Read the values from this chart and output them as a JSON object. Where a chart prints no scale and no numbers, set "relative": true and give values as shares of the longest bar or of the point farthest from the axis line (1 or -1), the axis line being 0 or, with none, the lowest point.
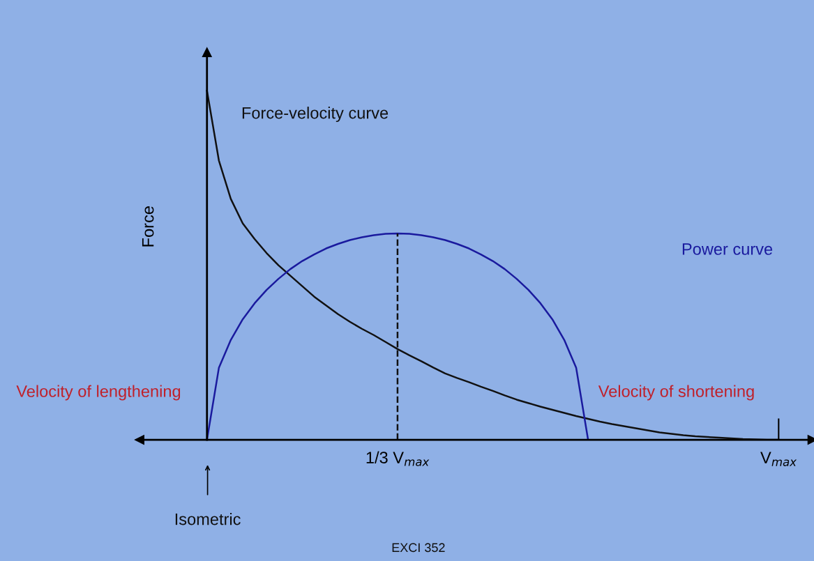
{
  "chart_data": {
    "type": "line",
    "relative": true,
    "ylabel": "Force",
    "categories": [
      null,
      null,
      null,
      null,
      null,
      null,
      null,
      null,
      null,
      null,
      null,
      null,
      null,
      null,
      null,
      null,
      "1/3 V$_{max}$",
      null,
      null,
      null,
      null,
      null,
      null,
      null,
      null,
      null,
      null,
      null,
      null,
      null,
      null,
      null,
      null,
      null,
      null,
      null,
      null,
      null,
      null,
      null,
      null,
      null,
      null,
      null,
      null,
      null,
      null,
      null,
      "V$_{max}$"
    ],
    "series": [
      {
        "name": "Force-velocity curve",
        "color": "#111111",
        "values": [
          1.0,
          0.8,
          0.69,
          0.62,
          0.575,
          0.535,
          0.5,
          0.47,
          0.44,
          0.41,
          0.385,
          0.36,
          0.338,
          0.318,
          0.3,
          0.28,
          0.26,
          0.242,
          0.225,
          0.207,
          0.19,
          0.177,
          0.165,
          0.152,
          0.14,
          0.127,
          0.115,
          0.105,
          0.095,
          0.086,
          0.077,
          0.068,
          0.06,
          0.052,
          0.045,
          0.039,
          0.033,
          0.027,
          0.021,
          0.017,
          0.013,
          0.01,
          0.008,
          0.006,
          0.004,
          0.002,
          0.001,
          0.0,
          0.0
        ]
      },
      {
        "name": "Power curve",
        "color": "#1a1a9e",
        "values": [
          0,
          0.206,
          0.286,
          0.345,
          0.391,
          0.429,
          0.461,
          0.489,
          0.512,
          0.531,
          0.548,
          0.561,
          0.572,
          0.58,
          0.586,
          0.59,
          0.591,
          0.59,
          0.586,
          0.58,
          0.572,
          0.561,
          0.548,
          0.531,
          0.512,
          0.489,
          0.461,
          0.429,
          0.391,
          0.345,
          0.286,
          0.206,
          0,
          null,
          null,
          null,
          null,
          null,
          null,
          null,
          null,
          null,
          null,
          null,
          null,
          null,
          null,
          null,
          null
        ]
      }
    ],
    "ref_lines": [
      {
        "axis": "x",
        "value": "1/3 V$_{max}$",
        "color": "#111111",
        "line_style": "dashed"
      }
    ],
    "annotations": [
      "Velocity of lengthening",
      "Velocity of shortening",
      "Isometric",
      "EXCI 352"
    ],
    "legend": false,
    "grid": false,
    "marker": "none"
  }
}
